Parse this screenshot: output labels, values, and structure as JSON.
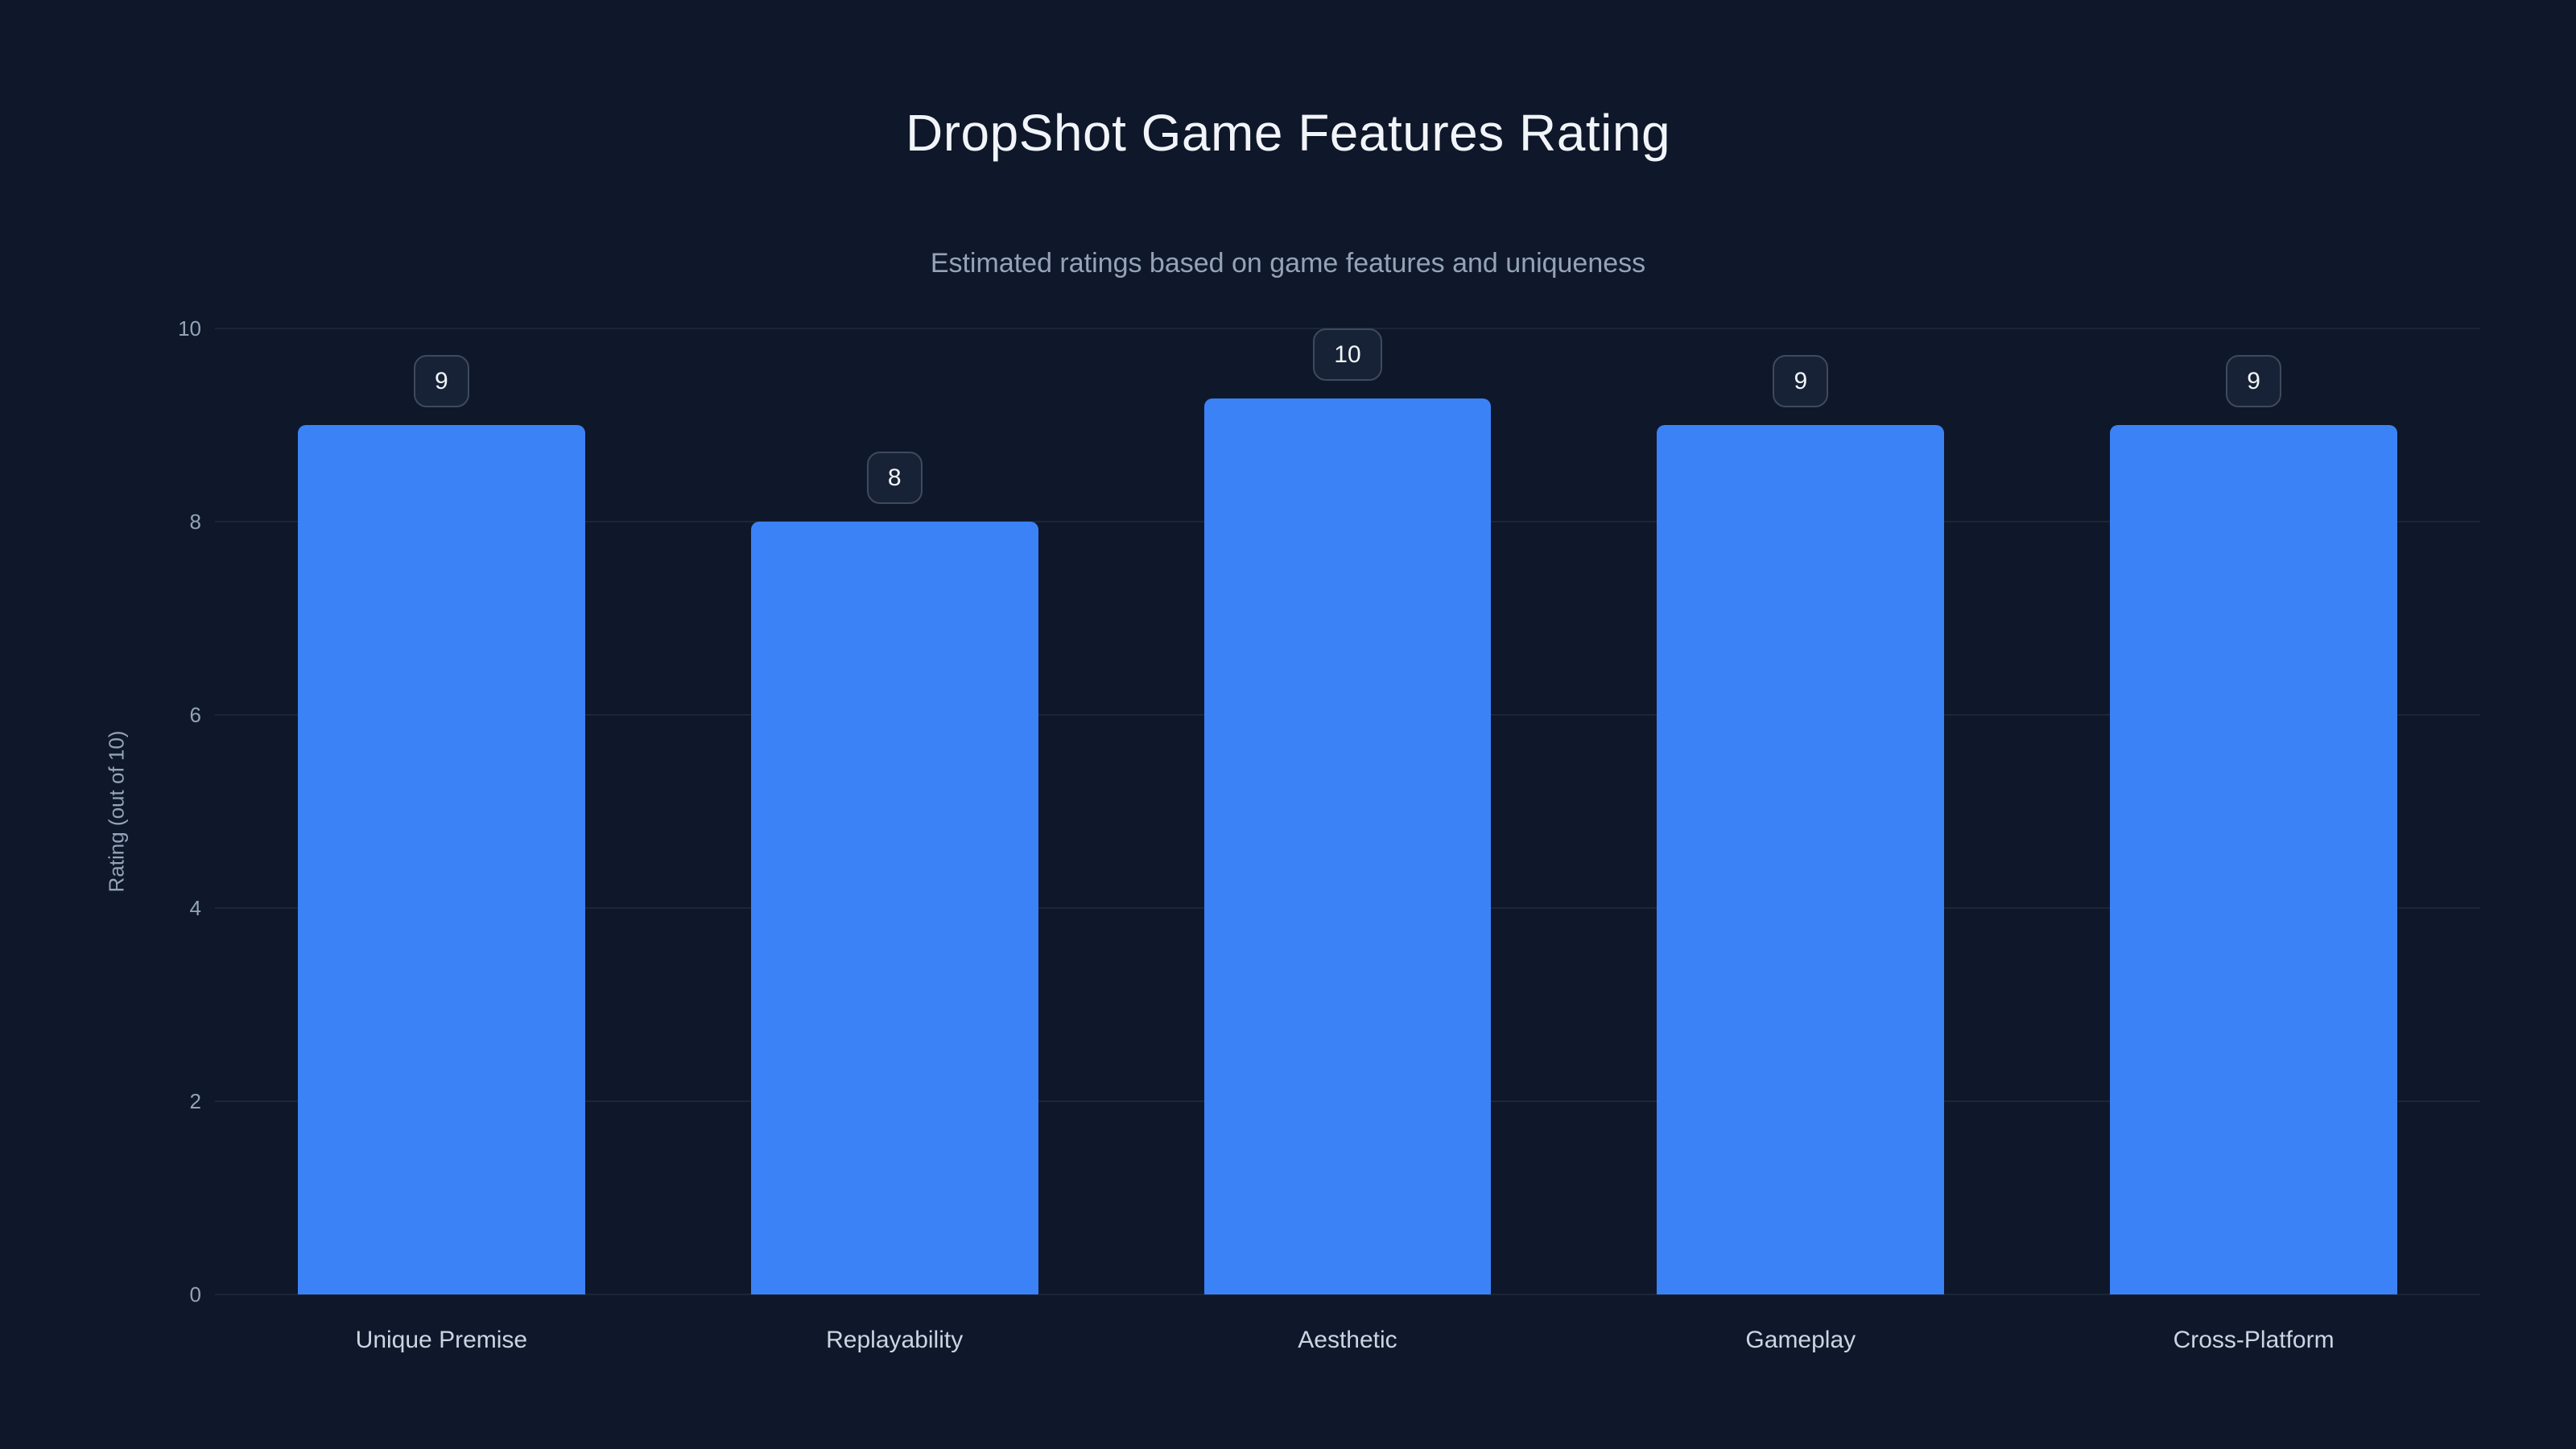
{
  "chart_data": {
    "type": "bar",
    "title": "DropShot Game Features Rating",
    "subtitle": "Estimated ratings based on game features and uniqueness",
    "categories": [
      "Unique Premise",
      "Replayability",
      "Aesthetic",
      "Gameplay",
      "Cross-Platform"
    ],
    "values": [
      9,
      8,
      10,
      9,
      9
    ],
    "value_labels": [
      "9",
      "8",
      "10",
      "9",
      "9"
    ],
    "xlabel": "",
    "ylabel": "Rating (out of 10)",
    "ylim": [
      0,
      10
    ],
    "yticks": [
      0,
      2,
      4,
      6,
      8,
      10
    ],
    "grid": true,
    "legend": false,
    "colors": {
      "background": "#0f172a",
      "bar": "#3b82f6",
      "grid": "#1c2636",
      "title": "#f1f5f9",
      "subtitle": "#94a3b8",
      "tick": "#94a3b8",
      "category": "#cbd5e1",
      "badge_bg": "#182236",
      "badge_border": "#3e4a5e",
      "badge_text": "#f1f5f9"
    }
  }
}
